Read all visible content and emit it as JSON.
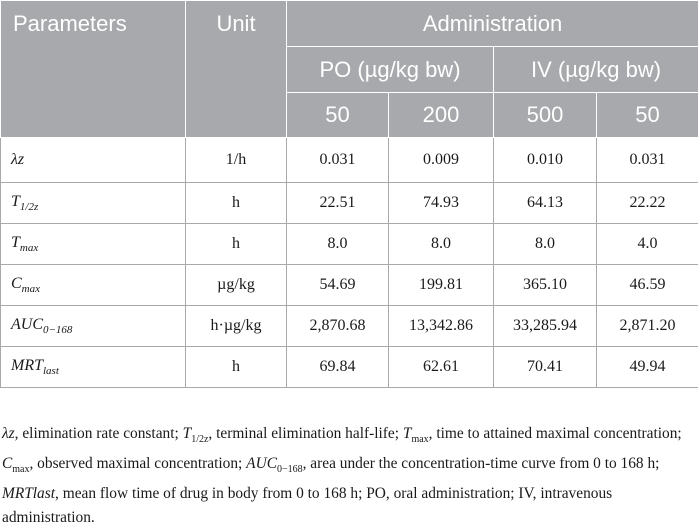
{
  "table": {
    "header": {
      "parameters": "Parameters",
      "unit": "Unit",
      "administration": "Administration",
      "po": "PO (µg/kg bw)",
      "iv": "IV (µg/kg bw)",
      "doses": [
        "50",
        "200",
        "500",
        "50"
      ]
    },
    "rows": [
      {
        "param": "λz",
        "param_sub": "",
        "unit": "1/h",
        "values": [
          "0.031",
          "0.009",
          "0.010",
          "0.031"
        ]
      },
      {
        "param": "T",
        "param_sub": "1/2z",
        "unit": "h",
        "values": [
          "22.51",
          "74.93",
          "64.13",
          "22.22"
        ]
      },
      {
        "param": "T",
        "param_sub": "max",
        "unit": "h",
        "values": [
          "8.0",
          "8.0",
          "8.0",
          "4.0"
        ]
      },
      {
        "param": "C",
        "param_sub": "max",
        "unit": "µg/kg",
        "values": [
          "54.69",
          "199.81",
          "365.10",
          "46.59"
        ]
      },
      {
        "param": "AUC",
        "param_sub": "0−168",
        "unit": "h·µg/kg",
        "values": [
          "2,870.68",
          "13,342.86",
          "33,285.94",
          "2,871.20"
        ]
      },
      {
        "param": "MRT",
        "param_sub": "last",
        "unit": "h",
        "values": [
          "69.84",
          "62.61",
          "70.41",
          "49.94"
        ]
      }
    ]
  },
  "footnote": {
    "items": [
      {
        "sym": "λz",
        "sub": "",
        "text": ", elimination rate constant; "
      },
      {
        "sym": "T",
        "sub": "1/2z",
        "text": ", terminal elimination half-life; "
      },
      {
        "sym": "T",
        "sub": "max",
        "text": ", time to attained maximal concentration; "
      },
      {
        "sym": "C",
        "sub": "max",
        "text": ", observed maximal concentration; "
      },
      {
        "sym": "AUC",
        "sub": "0−168",
        "text": ", area under the concentration-time curve from 0 to 168 h; "
      },
      {
        "sym": "MRTlast",
        "sub": "",
        "text": ", mean flow time of drug in body from 0 to 168 h; PO, oral administration; IV, intravenous administration."
      }
    ]
  }
}
